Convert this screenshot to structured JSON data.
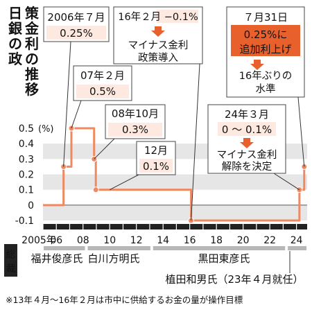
{
  "chart_data": {
    "type": "line",
    "title": "日銀の政策金利の推移",
    "ylabel": "(%)",
    "ylim": [
      -0.1,
      0.5
    ],
    "yticks": [
      "0.5",
      "0.4",
      "0.3",
      "0.2",
      "0.1",
      "0",
      "-0.1"
    ],
    "xlim": [
      2005,
      2024.8
    ],
    "xtick_labels": [
      {
        "x": 2005,
        "label": "2005年"
      },
      {
        "x": 2006,
        "label": "06"
      },
      {
        "x": 2008,
        "label": "08"
      },
      {
        "x": 2010,
        "label": "10"
      },
      {
        "x": 2012,
        "label": "12"
      },
      {
        "x": 2014,
        "label": "14"
      },
      {
        "x": 2016,
        "label": "16"
      },
      {
        "x": 2018,
        "label": "18"
      },
      {
        "x": 2020,
        "label": "20"
      },
      {
        "x": 2022,
        "label": "22"
      },
      {
        "x": 2024,
        "label": "24"
      }
    ],
    "series": [
      {
        "color": "#ee8a63",
        "step": true,
        "points": [
          {
            "date": "2006-07",
            "x": 2006.54,
            "y": 0.25
          },
          {
            "date": "2007-02",
            "x": 2007.13,
            "y": 0.5
          },
          {
            "date": "2008-10",
            "x": 2008.83,
            "y": 0.3
          },
          {
            "date": "2008-12",
            "x": 2008.96,
            "y": 0.1
          },
          {
            "date": "2016-02",
            "x": 2016.1,
            "y": -0.1
          },
          {
            "date": "2024-03",
            "x": 2024.22,
            "y": 0.1
          },
          {
            "date": "2024-07",
            "x": 2024.58,
            "y": 0.25
          }
        ],
        "start_value": 0
      }
    ],
    "annotations": [
      {
        "lines": [
          "2006年７月",
          "0.25%"
        ]
      },
      {
        "lines": [
          "07年２月",
          "0.5%"
        ]
      },
      {
        "lines": [
          "08年10月",
          "0.3%"
        ]
      },
      {
        "lines": [
          "12月",
          "0.1%"
        ]
      },
      {
        "lines": [
          "16年２月 −0.1%"
        ],
        "sub": [
          "マイナス金利",
          "政策導入"
        ]
      },
      {
        "lines": [
          "７月31日",
          "0.25%に",
          "追加利上げ"
        ],
        "sub": [
          "16年ぶりの",
          "水準"
        ]
      },
      {
        "lines": [
          "24年３月",
          "0 ～ 0.1%"
        ],
        "sub": [
          "マイナス金利",
          "解除を決定"
        ]
      }
    ],
    "governor_label": "総裁",
    "governors": [
      {
        "name": "福井俊彦氏"
      },
      {
        "name": "白川方明氏"
      },
      {
        "name": "黒田東彦氏"
      },
      {
        "name": "植田和男氏（23年４月就任）"
      }
    ],
    "footnote": "※13年４月～16年２月は市中に供給するお金の量が操作目標",
    "colors": {
      "line": "#ee8a63",
      "accent": "#e8602c",
      "box_fill": "#fde9df",
      "band": "#e6e6e6"
    }
  }
}
